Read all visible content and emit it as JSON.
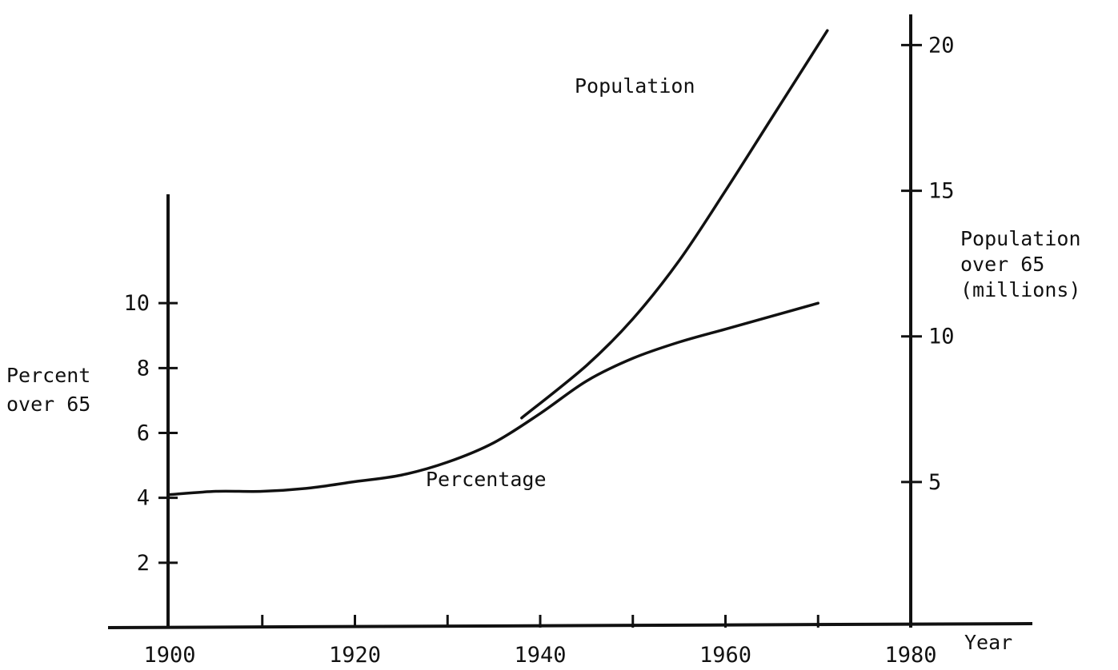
{
  "chart_data": {
    "type": "line",
    "x_axis": {
      "label": "Year",
      "ticks": [
        1900,
        1920,
        1940,
        1960,
        1980
      ],
      "range": [
        1900,
        1980
      ]
    },
    "y_left": {
      "label_lines": [
        "Percent",
        "over 65"
      ],
      "ticks": [
        2,
        4,
        6,
        8,
        10
      ],
      "range": [
        0,
        12
      ]
    },
    "y_right": {
      "label_lines": [
        "Population",
        "over 65",
        "(millions)"
      ],
      "ticks": [
        5,
        10,
        15,
        20
      ],
      "range": [
        0,
        21
      ]
    },
    "series": [
      {
        "name": "Population",
        "axis": "right",
        "points": [
          [
            1938,
            7.2
          ],
          [
            1945,
            9.0
          ],
          [
            1950,
            10.6
          ],
          [
            1955,
            12.6
          ],
          [
            1960,
            15.0
          ],
          [
            1965,
            17.5
          ],
          [
            1971,
            20.5
          ]
        ]
      },
      {
        "name": "Percentage",
        "axis": "left",
        "points": [
          [
            1900,
            4.1
          ],
          [
            1905,
            4.2
          ],
          [
            1910,
            4.2
          ],
          [
            1915,
            4.3
          ],
          [
            1920,
            4.5
          ],
          [
            1925,
            4.7
          ],
          [
            1930,
            5.1
          ],
          [
            1935,
            5.7
          ],
          [
            1940,
            6.6
          ],
          [
            1945,
            7.6
          ],
          [
            1950,
            8.3
          ],
          [
            1955,
            8.8
          ],
          [
            1960,
            9.2
          ],
          [
            1965,
            9.6
          ],
          [
            1970,
            10.0
          ]
        ]
      }
    ]
  }
}
